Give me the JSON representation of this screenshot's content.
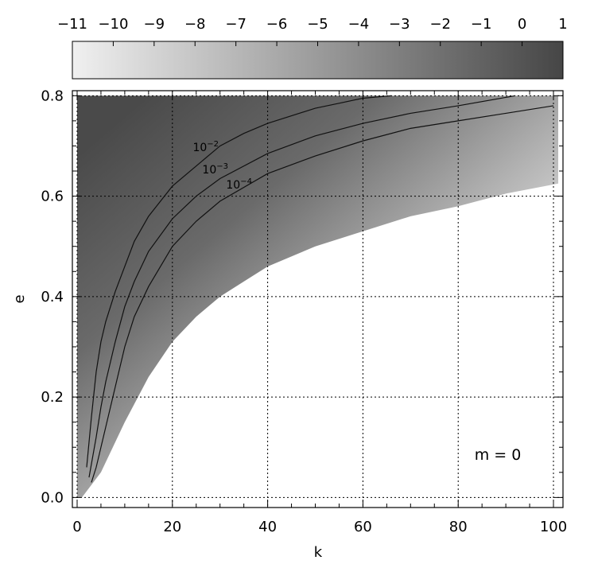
{
  "chart_data": {
    "type": "heatmap",
    "xlabel": "k",
    "ylabel": "e",
    "xlim": [
      -1,
      102
    ],
    "ylim": [
      -0.02,
      0.81
    ],
    "x_ticks": [
      "0",
      "20",
      "40",
      "60",
      "80",
      "100"
    ],
    "y_ticks": [
      "0.0",
      "0.2",
      "0.4",
      "0.6",
      "0.8"
    ],
    "grid": true,
    "colorbar": {
      "range": [
        -11,
        1
      ],
      "ticks": [
        "−11",
        "−10",
        "−9",
        "−8",
        "−7",
        "−6",
        "−5",
        "−4",
        "−3",
        "−2",
        "−1",
        "0",
        "1"
      ],
      "color_low": "#f0f0f0",
      "color_high": "#464646"
    },
    "annotation": "m = 0",
    "contours": [
      {
        "label_base": "10",
        "label_exp": "−2",
        "label_at": [
          27,
          0.69
        ],
        "points": [
          [
            2,
            0.06
          ],
          [
            3,
            0.16
          ],
          [
            4,
            0.25
          ],
          [
            5,
            0.31
          ],
          [
            6,
            0.35
          ],
          [
            8,
            0.41
          ],
          [
            10,
            0.46
          ],
          [
            12,
            0.51
          ],
          [
            15,
            0.56
          ],
          [
            20,
            0.62
          ],
          [
            25,
            0.66
          ],
          [
            30,
            0.7
          ],
          [
            35,
            0.725
          ],
          [
            40,
            0.745
          ],
          [
            45,
            0.76
          ],
          [
            50,
            0.775
          ],
          [
            55,
            0.785
          ],
          [
            60,
            0.795
          ],
          [
            66,
            0.8
          ]
        ]
      },
      {
        "label_base": "10",
        "label_exp": "−3",
        "label_at": [
          29,
          0.645
        ],
        "points": [
          [
            2.5,
            0.04
          ],
          [
            4,
            0.12
          ],
          [
            5,
            0.18
          ],
          [
            6,
            0.23
          ],
          [
            8,
            0.31
          ],
          [
            10,
            0.38
          ],
          [
            12,
            0.43
          ],
          [
            15,
            0.49
          ],
          [
            20,
            0.555
          ],
          [
            25,
            0.6
          ],
          [
            30,
            0.635
          ],
          [
            40,
            0.685
          ],
          [
            50,
            0.72
          ],
          [
            60,
            0.745
          ],
          [
            70,
            0.765
          ],
          [
            80,
            0.78
          ],
          [
            92,
            0.8
          ]
        ]
      },
      {
        "label_base": "10",
        "label_exp": "−4",
        "label_at": [
          34,
          0.615
        ],
        "points": [
          [
            3,
            0.03
          ],
          [
            4,
            0.06
          ],
          [
            5,
            0.1
          ],
          [
            6,
            0.14
          ],
          [
            8,
            0.22
          ],
          [
            10,
            0.3
          ],
          [
            12,
            0.36
          ],
          [
            15,
            0.42
          ],
          [
            20,
            0.5
          ],
          [
            25,
            0.55
          ],
          [
            30,
            0.59
          ],
          [
            40,
            0.645
          ],
          [
            50,
            0.68
          ],
          [
            60,
            0.71
          ],
          [
            70,
            0.735
          ],
          [
            80,
            0.75
          ],
          [
            90,
            0.765
          ],
          [
            100,
            0.78
          ]
        ]
      }
    ],
    "domain_edge": [
      [
        0,
        0.0
      ],
      [
        1,
        0.0
      ],
      [
        5,
        0.05
      ],
      [
        10,
        0.15
      ],
      [
        15,
        0.24
      ],
      [
        20,
        0.31
      ],
      [
        25,
        0.36
      ],
      [
        30,
        0.4
      ],
      [
        35,
        0.43
      ],
      [
        40,
        0.46
      ],
      [
        50,
        0.5
      ],
      [
        60,
        0.53
      ],
      [
        70,
        0.56
      ],
      [
        80,
        0.58
      ],
      [
        90,
        0.605
      ],
      [
        101,
        0.625
      ]
    ]
  }
}
